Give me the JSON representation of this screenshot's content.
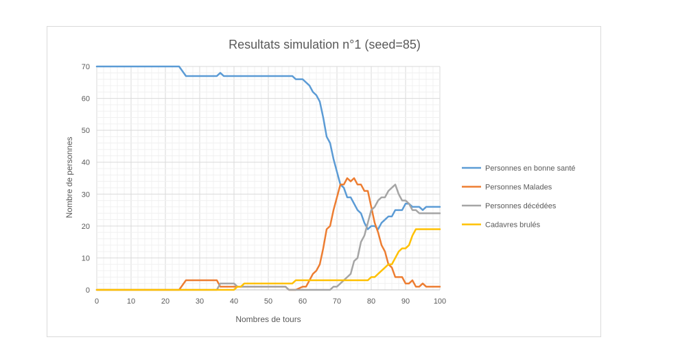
{
  "chart_data": {
    "type": "line",
    "title": "Resultats simulation n°1 (seed=85)",
    "xlabel": "Nombres de tours",
    "ylabel": "Nombre  de personnes",
    "xlim": [
      0,
      100
    ],
    "ylim": [
      0,
      70
    ],
    "x_ticks": [
      "0",
      "10",
      "20",
      "30",
      "40",
      "50",
      "60",
      "70",
      "80",
      "90",
      "100"
    ],
    "y_ticks": [
      "0",
      "10",
      "20",
      "30",
      "40",
      "50",
      "60",
      "70"
    ],
    "grid": true,
    "legend": "right",
    "series": [
      {
        "name": "Personnes en bonne santé",
        "color": "#5b9bd5",
        "points": [
          [
            0,
            70
          ],
          [
            24,
            70
          ],
          [
            26,
            67
          ],
          [
            35,
            67
          ],
          [
            36,
            68
          ],
          [
            37,
            67
          ],
          [
            57,
            67
          ],
          [
            58,
            66
          ],
          [
            60,
            66
          ],
          [
            62,
            64
          ],
          [
            63,
            62
          ],
          [
            64,
            61
          ],
          [
            65,
            59
          ],
          [
            66,
            54
          ],
          [
            67,
            48
          ],
          [
            68,
            46
          ],
          [
            69,
            41
          ],
          [
            70,
            37
          ],
          [
            71,
            33
          ],
          [
            72,
            32
          ],
          [
            73,
            29
          ],
          [
            74,
            29
          ],
          [
            75,
            27
          ],
          [
            76,
            25
          ],
          [
            77,
            24
          ],
          [
            78,
            21
          ],
          [
            79,
            19
          ],
          [
            80,
            20
          ],
          [
            81,
            20
          ],
          [
            82,
            19
          ],
          [
            83,
            21
          ],
          [
            84,
            22
          ],
          [
            85,
            23
          ],
          [
            86,
            23
          ],
          [
            87,
            25
          ],
          [
            88,
            25
          ],
          [
            89,
            25
          ],
          [
            90,
            27
          ],
          [
            91,
            27
          ],
          [
            92,
            26
          ],
          [
            93,
            26
          ],
          [
            94,
            26
          ],
          [
            95,
            25
          ],
          [
            96,
            26
          ],
          [
            97,
            26
          ],
          [
            98,
            26
          ],
          [
            100,
            26
          ]
        ]
      },
      {
        "name": "Personnes Malades",
        "color": "#ed7d31",
        "points": [
          [
            0,
            0
          ],
          [
            24,
            0
          ],
          [
            26,
            3
          ],
          [
            35,
            3
          ],
          [
            36,
            1
          ],
          [
            55,
            1
          ],
          [
            56,
            0
          ],
          [
            58,
            0
          ],
          [
            60,
            1
          ],
          [
            61,
            1
          ],
          [
            62,
            3
          ],
          [
            63,
            5
          ],
          [
            64,
            6
          ],
          [
            65,
            8
          ],
          [
            66,
            13
          ],
          [
            67,
            19
          ],
          [
            68,
            20
          ],
          [
            69,
            25
          ],
          [
            70,
            29
          ],
          [
            71,
            33
          ],
          [
            72,
            33
          ],
          [
            73,
            35
          ],
          [
            74,
            34
          ],
          [
            75,
            35
          ],
          [
            76,
            33
          ],
          [
            77,
            33
          ],
          [
            78,
            31
          ],
          [
            79,
            31
          ],
          [
            80,
            26
          ],
          [
            81,
            21
          ],
          [
            82,
            18
          ],
          [
            83,
            14
          ],
          [
            84,
            12
          ],
          [
            85,
            8
          ],
          [
            86,
            7
          ],
          [
            87,
            4
          ],
          [
            88,
            4
          ],
          [
            89,
            4
          ],
          [
            90,
            2
          ],
          [
            91,
            2
          ],
          [
            92,
            3
          ],
          [
            93,
            1
          ],
          [
            94,
            1
          ],
          [
            95,
            2
          ],
          [
            96,
            1
          ],
          [
            97,
            1
          ],
          [
            100,
            1
          ]
        ]
      },
      {
        "name": "Personnes décédées",
        "color": "#a5a5a5",
        "points": [
          [
            0,
            0
          ],
          [
            35,
            0
          ],
          [
            36,
            2
          ],
          [
            40,
            2
          ],
          [
            41,
            1
          ],
          [
            55,
            1
          ],
          [
            56,
            0
          ],
          [
            68,
            0
          ],
          [
            69,
            1
          ],
          [
            70,
            1
          ],
          [
            71,
            2
          ],
          [
            72,
            3
          ],
          [
            73,
            4
          ],
          [
            74,
            5
          ],
          [
            75,
            9
          ],
          [
            76,
            10
          ],
          [
            77,
            15
          ],
          [
            78,
            17
          ],
          [
            79,
            21
          ],
          [
            80,
            25
          ],
          [
            81,
            26
          ],
          [
            82,
            28
          ],
          [
            83,
            29
          ],
          [
            84,
            29
          ],
          [
            85,
            31
          ],
          [
            86,
            32
          ],
          [
            87,
            33
          ],
          [
            88,
            30
          ],
          [
            89,
            28
          ],
          [
            90,
            28
          ],
          [
            91,
            27
          ],
          [
            92,
            25
          ],
          [
            93,
            25
          ],
          [
            94,
            24
          ],
          [
            100,
            24
          ]
        ]
      },
      {
        "name": "Cadavres brulés",
        "color": "#ffc000",
        "points": [
          [
            0,
            0
          ],
          [
            40,
            0
          ],
          [
            41,
            1
          ],
          [
            42,
            1
          ],
          [
            43,
            2
          ],
          [
            57,
            2
          ],
          [
            58,
            3
          ],
          [
            79,
            3
          ],
          [
            80,
            4
          ],
          [
            81,
            4
          ],
          [
            82,
            5
          ],
          [
            83,
            6
          ],
          [
            84,
            7
          ],
          [
            85,
            8
          ],
          [
            86,
            8
          ],
          [
            87,
            10
          ],
          [
            88,
            12
          ],
          [
            89,
            13
          ],
          [
            90,
            13
          ],
          [
            91,
            14
          ],
          [
            92,
            17
          ],
          [
            93,
            19
          ],
          [
            100,
            19
          ]
        ]
      }
    ]
  }
}
